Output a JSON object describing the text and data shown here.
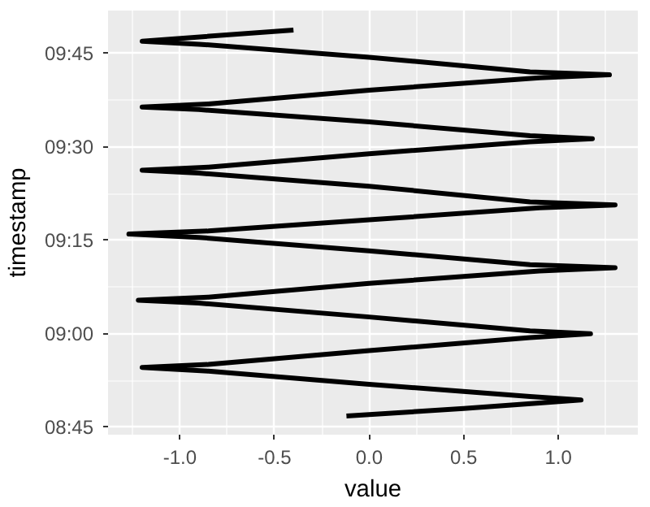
{
  "chart_data": {
    "type": "line",
    "xlabel": "value",
    "ylabel": "timestamp",
    "x": [
      -0.12,
      0.5,
      0.9,
      1.12,
      0.85,
      0.0,
      -0.85,
      -1.2,
      -0.85,
      0.0,
      0.85,
      1.17,
      0.85,
      0.0,
      -0.9,
      -1.22,
      -0.85,
      0.0,
      0.9,
      1.3,
      0.85,
      0.0,
      -0.9,
      -1.27,
      -0.85,
      0.0,
      0.9,
      1.3,
      0.85,
      0.0,
      -0.9,
      -1.2,
      -0.85,
      0.0,
      0.85,
      1.18,
      0.85,
      0.0,
      -0.9,
      -1.2,
      -0.85,
      0.0,
      0.9,
      1.27,
      0.85,
      0.0,
      -0.9,
      -1.2,
      -0.4
    ],
    "series": [
      {
        "color": "#000000",
        "values": [
          8.78,
          8.8,
          8.815,
          8.823,
          8.832,
          8.865,
          8.9,
          8.91,
          8.918,
          8.955,
          8.99,
          9.0,
          9.008,
          9.045,
          9.082,
          9.09,
          9.098,
          9.135,
          9.168,
          9.177,
          9.185,
          9.222,
          9.258,
          9.267,
          9.275,
          9.305,
          9.337,
          9.345,
          9.353,
          9.395,
          9.43,
          9.438,
          9.446,
          9.482,
          9.514,
          9.522,
          9.53,
          9.567,
          9.6,
          9.607,
          9.615,
          9.652,
          9.685,
          9.693,
          9.701,
          9.74,
          9.775,
          9.783,
          9.813
        ]
      }
    ],
    "xlim": [
      -1.38,
      1.42
    ],
    "xticks": [
      {
        "value": -1,
        "label": "-1.0"
      },
      -0.5,
      {
        "value": 0,
        "label": "0.0"
      },
      0.5,
      {
        "value": 1,
        "label": "1.0"
      }
    ],
    "ylim": [
      8.73,
      9.865
    ],
    "yticks": [
      {
        "value": 8.75,
        "label": "08:45"
      },
      {
        "value": 9.0,
        "label": "09:00"
      },
      {
        "value": 9.25,
        "label": "09:15"
      },
      {
        "value": 9.5,
        "label": "09:30"
      },
      {
        "value": 9.75,
        "label": "09:45"
      }
    ],
    "grid": true,
    "marker": "none",
    "line_style": "solid"
  }
}
